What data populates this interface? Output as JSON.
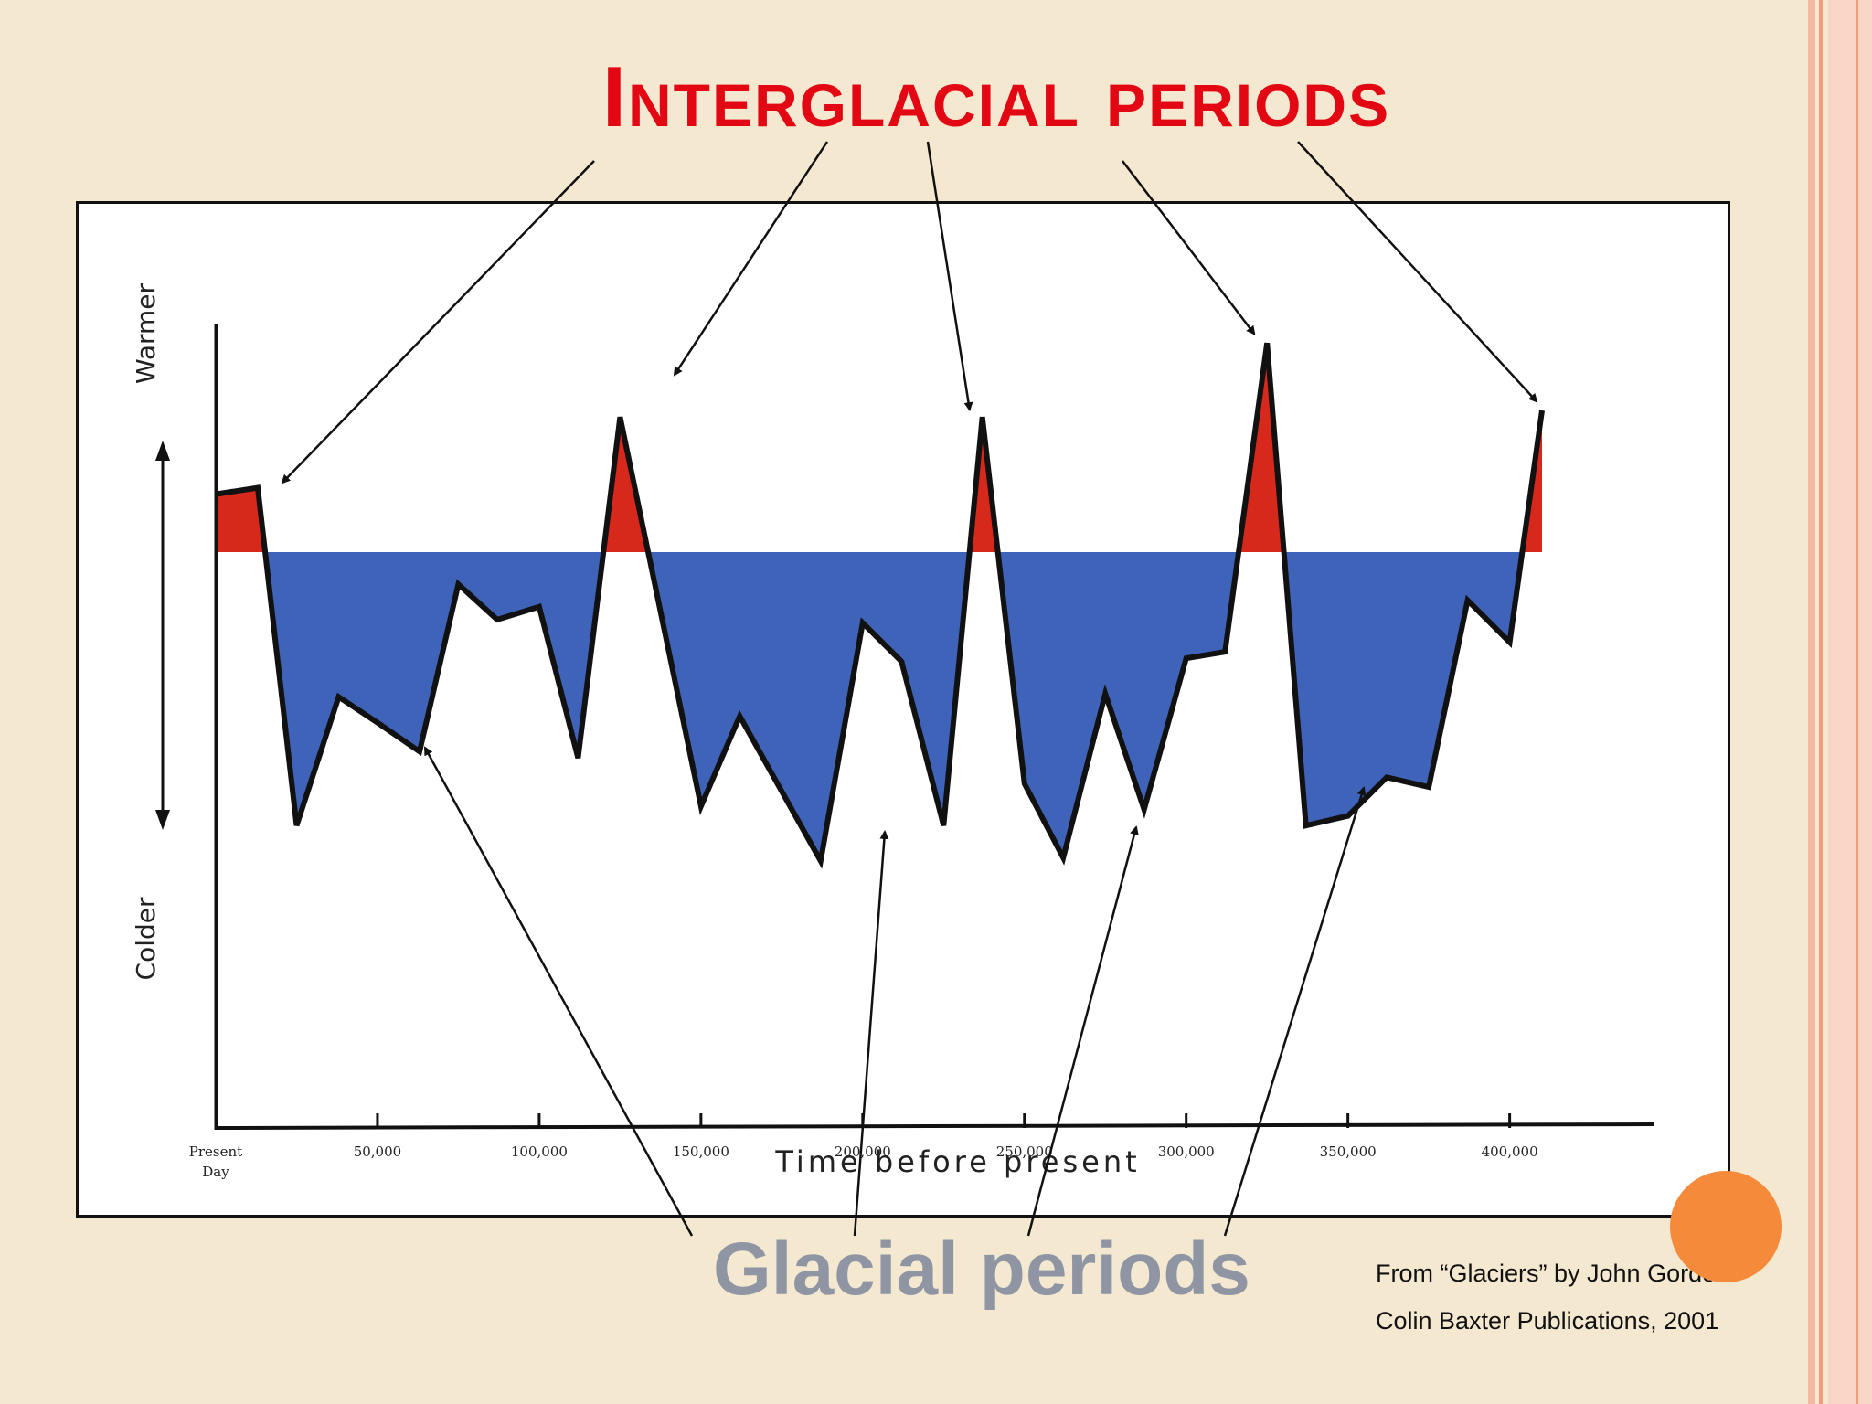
{
  "slide": {
    "title": "Interglacial periods",
    "glacial_label": "Glacial periods",
    "credit_line_1": "From “Glaciers” by John Gordon",
    "credit_line_2": "Colin Baxter Publications, 2001"
  },
  "colors": {
    "warm_fill": "#d7281c",
    "cold_fill": "#3f63b8",
    "title": "#e30613",
    "glacial_label": "#8f95a3",
    "accent_dot": "#f58a3a",
    "slide_background": "#f4e8d0"
  },
  "chart_data": {
    "type": "area",
    "title": "",
    "xlabel": "Time before present",
    "ylabel_top": "Warmer",
    "ylabel_bottom": "Colder",
    "x_ticks": [
      {
        "value": 0,
        "label": "Present Day"
      },
      {
        "value": 50000,
        "label": "50,000"
      },
      {
        "value": 100000,
        "label": "100,000"
      },
      {
        "value": 150000,
        "label": "150,000"
      },
      {
        "value": 200000,
        "label": "200,000"
      },
      {
        "value": 250000,
        "label": "250,000"
      },
      {
        "value": 300000,
        "label": "300,000"
      },
      {
        "value": 350000,
        "label": "350,000"
      },
      {
        "value": 400000,
        "label": "400,000"
      }
    ],
    "xlim": [
      0,
      410000
    ],
    "ylim": [
      -1.0,
      0.6
    ],
    "baseline": 0,
    "y_scale_note": "relative temperature, unitless (no tick labels)",
    "series": [
      {
        "x": [
          0,
          13000,
          25000,
          38000,
          50000,
          63000,
          75000,
          87000,
          100000,
          112000,
          125000,
          150000,
          162000,
          187000,
          200000,
          212000,
          225000,
          237000,
          250000,
          262000,
          275000,
          287000,
          300000,
          312000,
          325000,
          337000,
          350000,
          362000,
          375000,
          387000,
          400000,
          410000
        ],
        "y": [
          0.18,
          0.2,
          -0.85,
          -0.45,
          -0.53,
          -0.62,
          -0.1,
          -0.21,
          -0.17,
          -0.64,
          0.42,
          -0.79,
          -0.51,
          -0.96,
          -0.22,
          -0.34,
          -0.85,
          0.42,
          -0.72,
          -0.95,
          -0.44,
          -0.8,
          -0.33,
          -0.31,
          0.65,
          -0.85,
          -0.82,
          -0.7,
          -0.73,
          -0.15,
          -0.28,
          0.44
        ]
      }
    ],
    "legend": "none",
    "grid": false
  },
  "annotations": {
    "interglacial_arrow_targets_x": [
      13000,
      125000,
      237000,
      325000,
      410000
    ],
    "glacial_arrow_targets_x": [
      63000,
      200000,
      275000,
      337000
    ]
  }
}
